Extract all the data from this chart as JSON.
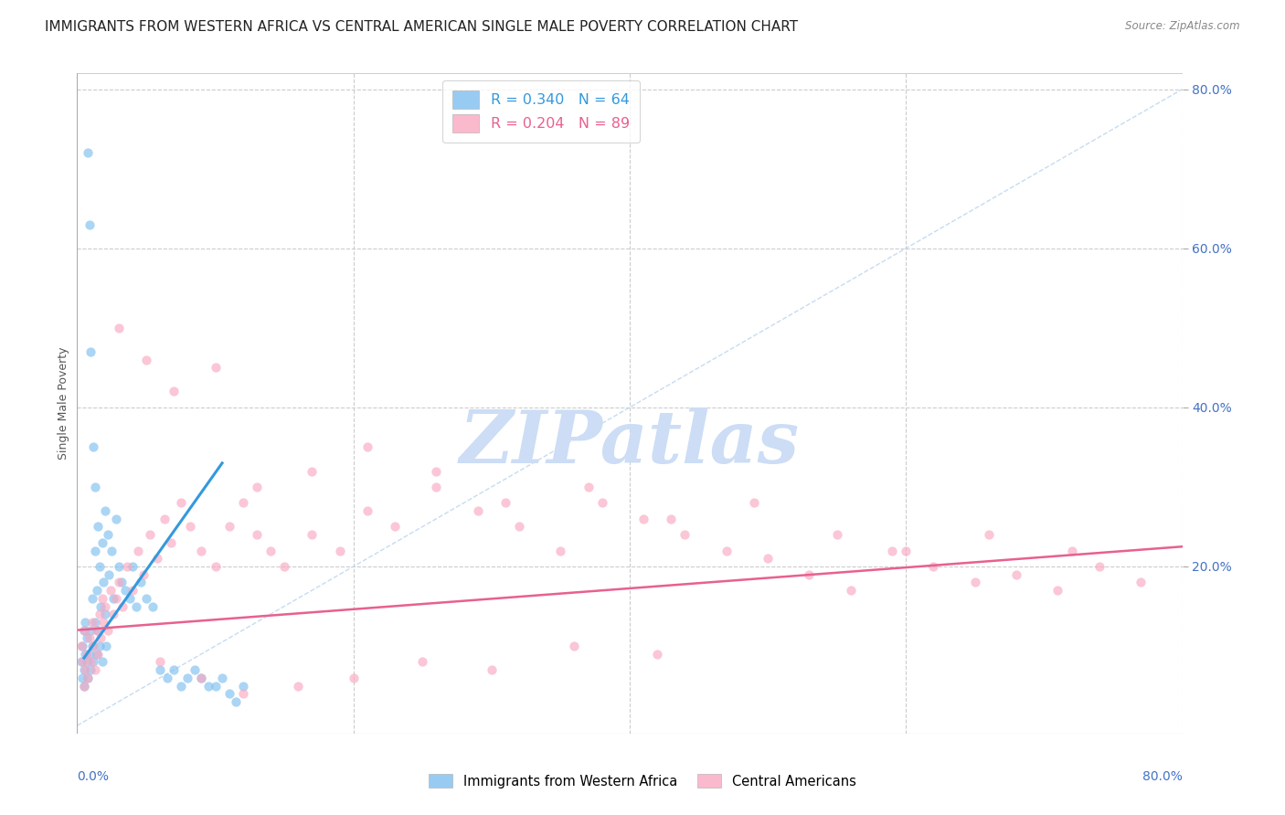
{
  "title": "IMMIGRANTS FROM WESTERN AFRICA VS CENTRAL AMERICAN SINGLE MALE POVERTY CORRELATION CHART",
  "source": "Source: ZipAtlas.com",
  "ylabel": "Single Male Poverty",
  "xmin": 0.0,
  "xmax": 0.8,
  "ymin": -0.01,
  "ymax": 0.82,
  "legend_entries": [
    {
      "label": "R = 0.340   N = 64",
      "color": "#7fbfef"
    },
    {
      "label": "R = 0.204   N = 89",
      "color": "#f9a8c0"
    }
  ],
  "watermark": "ZIPatlas",
  "blue_scatter_x": [
    0.003,
    0.004,
    0.004,
    0.005,
    0.005,
    0.005,
    0.006,
    0.006,
    0.007,
    0.007,
    0.008,
    0.008,
    0.009,
    0.009,
    0.01,
    0.01,
    0.01,
    0.011,
    0.011,
    0.012,
    0.012,
    0.013,
    0.013,
    0.014,
    0.014,
    0.015,
    0.015,
    0.016,
    0.016,
    0.017,
    0.018,
    0.018,
    0.019,
    0.02,
    0.02,
    0.021,
    0.022,
    0.023,
    0.025,
    0.026,
    0.028,
    0.03,
    0.032,
    0.035,
    0.038,
    0.04,
    0.043,
    0.046,
    0.05,
    0.055,
    0.06,
    0.065,
    0.07,
    0.075,
    0.08,
    0.085,
    0.09,
    0.095,
    0.1,
    0.105,
    0.11,
    0.115,
    0.12,
    0.013
  ],
  "blue_scatter_y": [
    0.08,
    0.06,
    0.1,
    0.05,
    0.12,
    0.07,
    0.09,
    0.13,
    0.08,
    0.11,
    0.72,
    0.06,
    0.09,
    0.63,
    0.07,
    0.12,
    0.47,
    0.1,
    0.16,
    0.08,
    0.35,
    0.13,
    0.22,
    0.09,
    0.17,
    0.12,
    0.25,
    0.1,
    0.2,
    0.15,
    0.23,
    0.08,
    0.18,
    0.14,
    0.27,
    0.1,
    0.24,
    0.19,
    0.22,
    0.16,
    0.26,
    0.2,
    0.18,
    0.17,
    0.16,
    0.2,
    0.15,
    0.18,
    0.16,
    0.15,
    0.07,
    0.06,
    0.07,
    0.05,
    0.06,
    0.07,
    0.06,
    0.05,
    0.05,
    0.06,
    0.04,
    0.03,
    0.05,
    0.3
  ],
  "pink_scatter_x": [
    0.003,
    0.004,
    0.005,
    0.005,
    0.006,
    0.007,
    0.008,
    0.009,
    0.01,
    0.011,
    0.012,
    0.013,
    0.014,
    0.015,
    0.016,
    0.017,
    0.018,
    0.019,
    0.02,
    0.022,
    0.024,
    0.026,
    0.028,
    0.03,
    0.033,
    0.036,
    0.04,
    0.044,
    0.048,
    0.053,
    0.058,
    0.063,
    0.068,
    0.075,
    0.082,
    0.09,
    0.1,
    0.11,
    0.12,
    0.13,
    0.14,
    0.15,
    0.17,
    0.19,
    0.21,
    0.23,
    0.26,
    0.29,
    0.32,
    0.35,
    0.38,
    0.41,
    0.44,
    0.47,
    0.5,
    0.53,
    0.56,
    0.59,
    0.62,
    0.65,
    0.68,
    0.71,
    0.74,
    0.77,
    0.03,
    0.05,
    0.07,
    0.1,
    0.13,
    0.17,
    0.21,
    0.26,
    0.31,
    0.37,
    0.43,
    0.49,
    0.55,
    0.6,
    0.66,
    0.72,
    0.06,
    0.09,
    0.12,
    0.16,
    0.2,
    0.25,
    0.3,
    0.36,
    0.42
  ],
  "pink_scatter_y": [
    0.1,
    0.08,
    0.12,
    0.05,
    0.07,
    0.09,
    0.06,
    0.11,
    0.08,
    0.13,
    0.1,
    0.07,
    0.12,
    0.09,
    0.14,
    0.11,
    0.16,
    0.13,
    0.15,
    0.12,
    0.17,
    0.14,
    0.16,
    0.18,
    0.15,
    0.2,
    0.17,
    0.22,
    0.19,
    0.24,
    0.21,
    0.26,
    0.23,
    0.28,
    0.25,
    0.22,
    0.2,
    0.25,
    0.28,
    0.24,
    0.22,
    0.2,
    0.24,
    0.22,
    0.27,
    0.25,
    0.3,
    0.27,
    0.25,
    0.22,
    0.28,
    0.26,
    0.24,
    0.22,
    0.21,
    0.19,
    0.17,
    0.22,
    0.2,
    0.18,
    0.19,
    0.17,
    0.2,
    0.18,
    0.5,
    0.46,
    0.42,
    0.45,
    0.3,
    0.32,
    0.35,
    0.32,
    0.28,
    0.3,
    0.26,
    0.28,
    0.24,
    0.22,
    0.24,
    0.22,
    0.08,
    0.06,
    0.04,
    0.05,
    0.06,
    0.08,
    0.07,
    0.1,
    0.09
  ],
  "blue_line_x": [
    0.005,
    0.105
  ],
  "blue_line_y": [
    0.085,
    0.33
  ],
  "pink_line_x": [
    0.0,
    0.8
  ],
  "pink_line_y": [
    0.12,
    0.225
  ],
  "diag_line_x": [
    0.0,
    0.8
  ],
  "diag_line_y": [
    0.0,
    0.8
  ],
  "blue_color": "#7fbfef",
  "pink_color": "#f9a8c0",
  "blue_line_color": "#3399dd",
  "pink_line_color": "#e86090",
  "diag_line_color": "#c0d8f0",
  "grid_color": "#cccccc",
  "ytick_color": "#4472c4",
  "xtick_color": "#4472c4",
  "title_fontsize": 11,
  "axis_label_fontsize": 9,
  "tick_fontsize": 10,
  "watermark_color": "#ccddf5",
  "background_color": "#ffffff"
}
